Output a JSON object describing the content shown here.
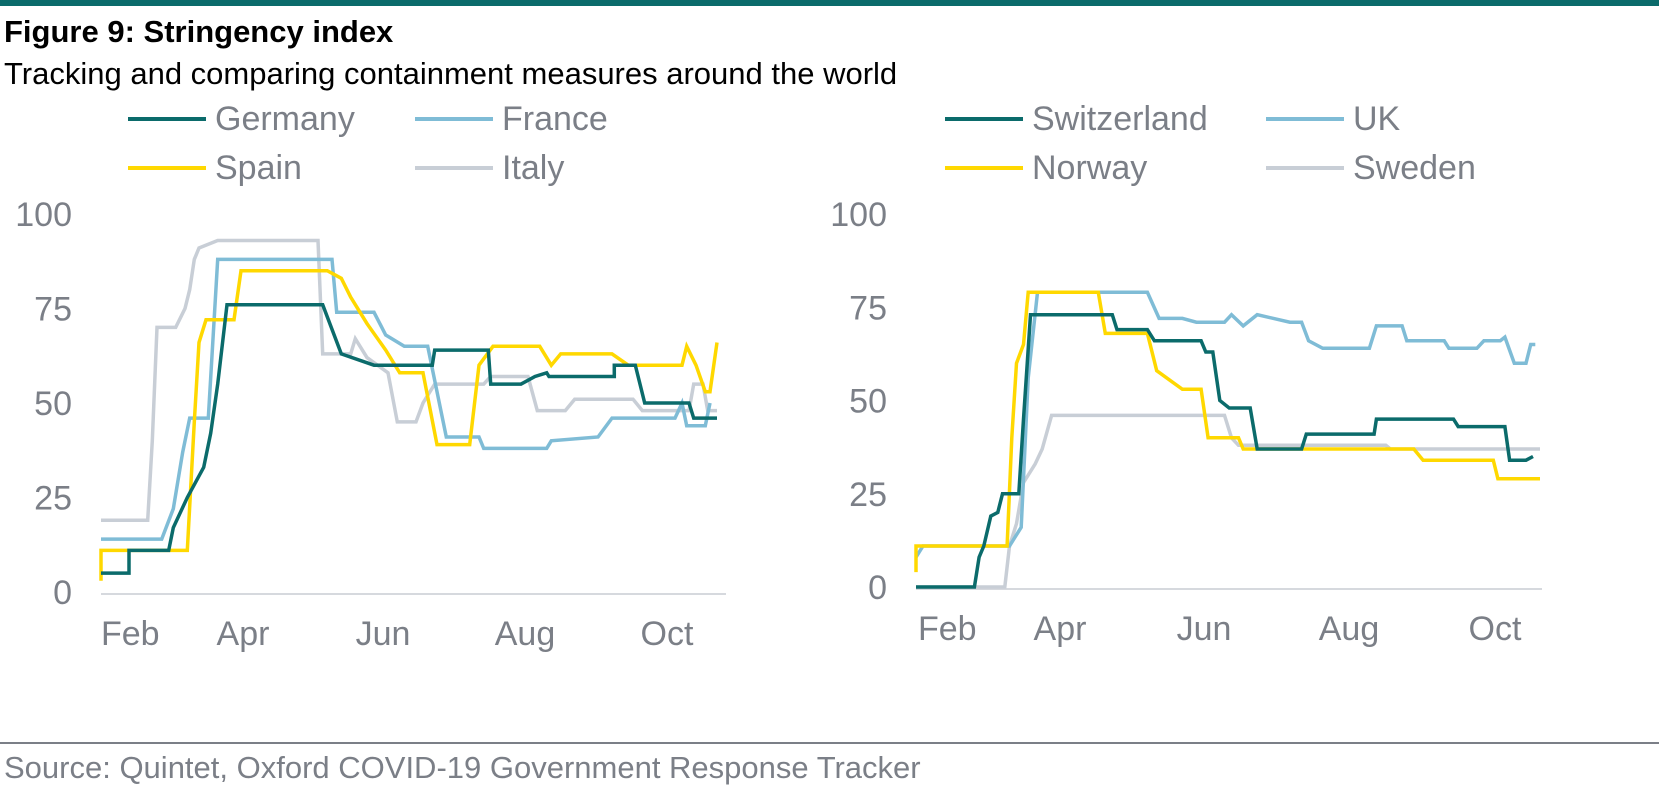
{
  "header": {
    "title": "Figure 9: Stringency index",
    "subtitle": "Tracking and comparing containment measures around the world"
  },
  "footer": {
    "source": "Source: Quintet, Oxford COVID-19 Government Response Tracker"
  },
  "colors": {
    "rule": "#0b6b6b",
    "text": "#7b7f87",
    "dark_teal": "#0b6b6b",
    "light_blue": "#7fbcd6",
    "yellow": "#ffd800",
    "light_grey": "#c8ced6"
  },
  "chart_data": [
    {
      "type": "line",
      "title": "",
      "xlabel": "",
      "ylabel": "",
      "x_ticks": [
        "Feb",
        "Apr",
        "Jun",
        "Aug",
        "Oct"
      ],
      "x_range": [
        "2020-02-01",
        "2020-10-25"
      ],
      "y_ticks": [
        0,
        25,
        50,
        75,
        100
      ],
      "ylim": [
        0,
        100
      ],
      "grid": false,
      "legend_position": "top",
      "series": [
        {
          "name": "Germany",
          "color": "#0b6b6b",
          "points": [
            [
              "2020-02-01",
              5
            ],
            [
              "2020-02-13",
              5
            ],
            [
              "2020-02-13",
              11
            ],
            [
              "2020-03-01",
              11
            ],
            [
              "2020-03-03",
              17
            ],
            [
              "2020-03-09",
              25
            ],
            [
              "2020-03-16",
              33
            ],
            [
              "2020-03-19",
              42
            ],
            [
              "2020-03-22",
              55
            ],
            [
              "2020-03-26",
              76
            ],
            [
              "2020-05-06",
              76
            ],
            [
              "2020-05-14",
              63
            ],
            [
              "2020-05-28",
              60
            ],
            [
              "2020-06-22",
              60
            ],
            [
              "2020-06-23",
              64
            ],
            [
              "2020-07-16",
              64
            ],
            [
              "2020-07-17",
              55
            ],
            [
              "2020-07-30",
              55
            ],
            [
              "2020-08-05",
              57
            ],
            [
              "2020-08-10",
              58
            ],
            [
              "2020-08-11",
              57
            ],
            [
              "2020-09-08",
              57
            ],
            [
              "2020-09-08",
              60
            ],
            [
              "2020-09-17",
              60
            ],
            [
              "2020-09-21",
              50
            ],
            [
              "2020-10-10",
              50
            ],
            [
              "2020-10-12",
              46
            ],
            [
              "2020-10-22",
              46
            ]
          ]
        },
        {
          "name": "France",
          "color": "#7fbcd6",
          "points": [
            [
              "2020-02-01",
              14
            ],
            [
              "2020-02-27",
              14
            ],
            [
              "2020-03-03",
              22
            ],
            [
              "2020-03-07",
              37
            ],
            [
              "2020-03-10",
              46
            ],
            [
              "2020-03-18",
              46
            ],
            [
              "2020-03-22",
              88
            ],
            [
              "2020-05-10",
              88
            ],
            [
              "2020-05-12",
              74
            ],
            [
              "2020-05-28",
              74
            ],
            [
              "2020-06-02",
              68
            ],
            [
              "2020-06-10",
              65
            ],
            [
              "2020-06-20",
              65
            ],
            [
              "2020-06-28",
              41
            ],
            [
              "2020-07-12",
              41
            ],
            [
              "2020-07-14",
              38
            ],
            [
              "2020-08-10",
              38
            ],
            [
              "2020-08-12",
              40
            ],
            [
              "2020-09-01",
              41
            ],
            [
              "2020-09-07",
              46
            ],
            [
              "2020-10-04",
              46
            ],
            [
              "2020-10-07",
              50
            ],
            [
              "2020-10-09",
              44
            ],
            [
              "2020-10-17",
              44
            ],
            [
              "2020-10-19",
              50
            ]
          ]
        },
        {
          "name": "Spain",
          "color": "#ffd800",
          "points": [
            [
              "2020-02-01",
              3
            ],
            [
              "2020-02-01",
              11
            ],
            [
              "2020-03-09",
              11
            ],
            [
              "2020-03-12",
              45
            ],
            [
              "2020-03-14",
              66
            ],
            [
              "2020-03-17",
              72
            ],
            [
              "2020-03-29",
              72
            ],
            [
              "2020-04-01",
              85
            ],
            [
              "2020-04-30",
              85
            ],
            [
              "2020-05-08",
              85
            ],
            [
              "2020-05-14",
              83
            ],
            [
              "2020-05-18",
              78
            ],
            [
              "2020-05-25",
              71
            ],
            [
              "2020-06-02",
              64
            ],
            [
              "2020-06-08",
              58
            ],
            [
              "2020-06-15",
              58
            ],
            [
              "2020-06-18",
              58
            ],
            [
              "2020-06-24",
              39
            ],
            [
              "2020-07-08",
              39
            ],
            [
              "2020-07-12",
              60
            ],
            [
              "2020-07-18",
              65
            ],
            [
              "2020-08-07",
              65
            ],
            [
              "2020-08-12",
              60
            ],
            [
              "2020-08-16",
              63
            ],
            [
              "2020-09-07",
              63
            ],
            [
              "2020-09-14",
              60
            ],
            [
              "2020-10-07",
              60
            ],
            [
              "2020-10-09",
              65
            ],
            [
              "2020-10-13",
              60
            ],
            [
              "2020-10-17",
              53
            ],
            [
              "2020-10-19",
              53
            ],
            [
              "2020-10-22",
              66
            ]
          ]
        },
        {
          "name": "Italy",
          "color": "#c8ced6",
          "points": [
            [
              "2020-02-01",
              19
            ],
            [
              "2020-02-21",
              19
            ],
            [
              "2020-02-23",
              40
            ],
            [
              "2020-02-25",
              70
            ],
            [
              "2020-03-04",
              70
            ],
            [
              "2020-03-08",
              75
            ],
            [
              "2020-03-10",
              80
            ],
            [
              "2020-03-12",
              88
            ],
            [
              "2020-03-14",
              91
            ],
            [
              "2020-03-22",
              93
            ],
            [
              "2020-04-20",
              93
            ],
            [
              "2020-05-04",
              93
            ],
            [
              "2020-05-06",
              63
            ],
            [
              "2020-05-18",
              63
            ],
            [
              "2020-05-20",
              67
            ],
            [
              "2020-05-25",
              62
            ],
            [
              "2020-06-03",
              58
            ],
            [
              "2020-06-07",
              45
            ],
            [
              "2020-06-15",
              45
            ],
            [
              "2020-06-18",
              50
            ],
            [
              "2020-06-23",
              55
            ],
            [
              "2020-07-14",
              55
            ],
            [
              "2020-07-17",
              57
            ],
            [
              "2020-08-02",
              57
            ],
            [
              "2020-08-06",
              48
            ],
            [
              "2020-08-18",
              48
            ],
            [
              "2020-08-22",
              51
            ],
            [
              "2020-09-16",
              51
            ],
            [
              "2020-09-20",
              48
            ],
            [
              "2020-10-10",
              48
            ],
            [
              "2020-10-12",
              55
            ],
            [
              "2020-10-16",
              55
            ],
            [
              "2020-10-18",
              48
            ],
            [
              "2020-10-22",
              48
            ]
          ]
        }
      ]
    },
    {
      "type": "line",
      "title": "",
      "xlabel": "",
      "ylabel": "",
      "x_ticks": [
        "Feb",
        "Apr",
        "Jun",
        "Aug",
        "Oct"
      ],
      "x_range": [
        "2020-02-01",
        "2020-10-25"
      ],
      "y_ticks": [
        0,
        25,
        50,
        75,
        100
      ],
      "ylim": [
        0,
        100
      ],
      "grid": false,
      "legend_position": "top",
      "series": [
        {
          "name": "Switzerland",
          "color": "#0b6b6b",
          "points": [
            [
              "2020-02-01",
              0
            ],
            [
              "2020-02-26",
              0
            ],
            [
              "2020-02-28",
              8
            ],
            [
              "2020-03-01",
              11
            ],
            [
              "2020-03-04",
              19
            ],
            [
              "2020-03-07",
              20
            ],
            [
              "2020-03-09",
              25
            ],
            [
              "2020-03-16",
              25
            ],
            [
              "2020-03-18",
              45
            ],
            [
              "2020-03-21",
              73
            ],
            [
              "2020-04-25",
              73
            ],
            [
              "2020-04-27",
              69
            ],
            [
              "2020-05-10",
              69
            ],
            [
              "2020-05-13",
              66
            ],
            [
              "2020-06-02",
              66
            ],
            [
              "2020-06-04",
              63
            ],
            [
              "2020-06-07",
              63
            ],
            [
              "2020-06-10",
              50
            ],
            [
              "2020-06-14",
              48
            ],
            [
              "2020-06-23",
              48
            ],
            [
              "2020-06-26",
              37
            ],
            [
              "2020-07-15",
              37
            ],
            [
              "2020-07-17",
              41
            ],
            [
              "2020-08-15",
              41
            ],
            [
              "2020-08-16",
              45
            ],
            [
              "2020-09-18",
              45
            ],
            [
              "2020-09-20",
              43
            ],
            [
              "2020-10-10",
              43
            ],
            [
              "2020-10-12",
              34
            ],
            [
              "2020-10-19",
              34
            ],
            [
              "2020-10-22",
              35
            ]
          ]
        },
        {
          "name": "UK",
          "color": "#7fbcd6",
          "points": [
            [
              "2020-02-01",
              8
            ],
            [
              "2020-02-04",
              11
            ],
            [
              "2020-03-12",
              11
            ],
            [
              "2020-03-17",
              16
            ],
            [
              "2020-03-20",
              56
            ],
            [
              "2020-03-24",
              79
            ],
            [
              "2020-05-10",
              79
            ],
            [
              "2020-05-15",
              72
            ],
            [
              "2020-05-25",
              72
            ],
            [
              "2020-05-31",
              71
            ],
            [
              "2020-06-12",
              71
            ],
            [
              "2020-06-15",
              73
            ],
            [
              "2020-06-20",
              70
            ],
            [
              "2020-06-26",
              73
            ],
            [
              "2020-07-10",
              71
            ],
            [
              "2020-07-15",
              71
            ],
            [
              "2020-07-18",
              66
            ],
            [
              "2020-07-24",
              64
            ],
            [
              "2020-08-13",
              64
            ],
            [
              "2020-08-16",
              70
            ],
            [
              "2020-08-27",
              70
            ],
            [
              "2020-08-29",
              66
            ],
            [
              "2020-09-14",
              66
            ],
            [
              "2020-09-16",
              64
            ],
            [
              "2020-09-28",
              64
            ],
            [
              "2020-10-01",
              66
            ],
            [
              "2020-10-08",
              66
            ],
            [
              "2020-10-10",
              67
            ],
            [
              "2020-10-14",
              60
            ],
            [
              "2020-10-19",
              60
            ],
            [
              "2020-10-21",
              65
            ],
            [
              "2020-10-23",
              65
            ]
          ]
        },
        {
          "name": "Norway",
          "color": "#ffd800",
          "points": [
            [
              "2020-02-01",
              4
            ],
            [
              "2020-02-01",
              11
            ],
            [
              "2020-03-11",
              11
            ],
            [
              "2020-03-13",
              40
            ],
            [
              "2020-03-15",
              60
            ],
            [
              "2020-03-18",
              65
            ],
            [
              "2020-03-20",
              79
            ],
            [
              "2020-04-19",
              79
            ],
            [
              "2020-04-22",
              68
            ],
            [
              "2020-05-10",
              68
            ],
            [
              "2020-05-14",
              58
            ],
            [
              "2020-05-25",
              53
            ],
            [
              "2020-06-02",
              53
            ],
            [
              "2020-06-05",
              40
            ],
            [
              "2020-06-18",
              40
            ],
            [
              "2020-06-20",
              37
            ],
            [
              "2020-09-01",
              37
            ],
            [
              "2020-09-05",
              34
            ],
            [
              "2020-10-05",
              34
            ],
            [
              "2020-10-07",
              29
            ],
            [
              "2020-10-25",
              29
            ]
          ]
        },
        {
          "name": "Sweden",
          "color": "#c8ced6",
          "points": [
            [
              "2020-02-01",
              0
            ],
            [
              "2020-03-10",
              0
            ],
            [
              "2020-03-12",
              11
            ],
            [
              "2020-03-15",
              17
            ],
            [
              "2020-03-18",
              28
            ],
            [
              "2020-03-23",
              33
            ],
            [
              "2020-03-26",
              37
            ],
            [
              "2020-03-30",
              46
            ],
            [
              "2020-06-12",
              46
            ],
            [
              "2020-06-15",
              40
            ],
            [
              "2020-06-18",
              38
            ],
            [
              "2020-08-20",
              38
            ],
            [
              "2020-08-22",
              37
            ],
            [
              "2020-10-25",
              37
            ]
          ]
        }
      ]
    }
  ]
}
